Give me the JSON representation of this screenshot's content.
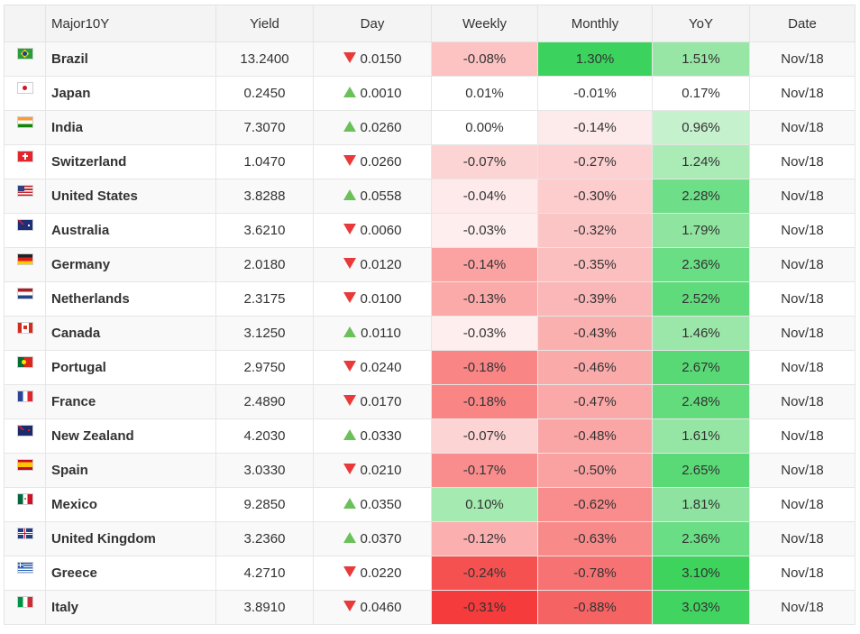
{
  "header": {
    "name": "Major10Y",
    "yield": "Yield",
    "day": "Day",
    "weekly": "Weekly",
    "monthly": "Monthly",
    "yoy": "YoY",
    "date": "Date"
  },
  "rows": [
    {
      "country": "Brazil",
      "flag_icon": "brazil-flag-icon",
      "yield": "13.2400",
      "day": "0.0150",
      "direction": "down",
      "weekly": "-0.08%",
      "monthly": "1.30%",
      "yoy": "1.51%",
      "date": "Nov/18",
      "weekly_color": "#fdc3c3",
      "monthly_color": "#3bd35d",
      "yoy_color": "#98e6a5"
    },
    {
      "country": "Japan",
      "flag_icon": "japan-flag-icon",
      "yield": "0.2450",
      "day": "0.0010",
      "direction": "up",
      "weekly": "0.01%",
      "monthly": "-0.01%",
      "yoy": "0.17%",
      "date": "Nov/18",
      "weekly_color": "#ffffff",
      "monthly_color": "#ffffff",
      "yoy_color": "#ffffff"
    },
    {
      "country": "India",
      "flag_icon": "india-flag-icon",
      "yield": "7.3070",
      "day": "0.0260",
      "direction": "up",
      "weekly": "0.00%",
      "monthly": "-0.14%",
      "yoy": "0.96%",
      "date": "Nov/18",
      "weekly_color": "#ffffff",
      "monthly_color": "#fdeaea",
      "yoy_color": "#c5f1cc"
    },
    {
      "country": "Switzerland",
      "flag_icon": "switzerland-flag-icon",
      "yield": "1.0470",
      "day": "0.0260",
      "direction": "down",
      "weekly": "-0.07%",
      "monthly": "-0.27%",
      "yoy": "1.24%",
      "date": "Nov/18",
      "weekly_color": "#fdd4d4",
      "monthly_color": "#fdd1d1",
      "yoy_color": "#aaebb6"
    },
    {
      "country": "United States",
      "flag_icon": "united-states-flag-icon",
      "yield": "3.8288",
      "day": "0.0558",
      "direction": "up",
      "weekly": "-0.04%",
      "monthly": "-0.30%",
      "yoy": "2.28%",
      "date": "Nov/18",
      "weekly_color": "#feeaea",
      "monthly_color": "#fdcccc",
      "yoy_color": "#6fde88"
    },
    {
      "country": "Australia",
      "flag_icon": "australia-flag-icon",
      "yield": "3.6210",
      "day": "0.0060",
      "direction": "down",
      "weekly": "-0.03%",
      "monthly": "-0.32%",
      "yoy": "1.79%",
      "date": "Nov/18",
      "weekly_color": "#feeeee",
      "monthly_color": "#fcc5c5",
      "yoy_color": "#8fe4a0"
    },
    {
      "country": "Germany",
      "flag_icon": "germany-flag-icon",
      "yield": "2.0180",
      "day": "0.0120",
      "direction": "down",
      "weekly": "-0.14%",
      "monthly": "-0.35%",
      "yoy": "2.36%",
      "date": "Nov/18",
      "weekly_color": "#fba3a3",
      "monthly_color": "#fcbfbf",
      "yoy_color": "#6ade84"
    },
    {
      "country": "Netherlands",
      "flag_icon": "netherlands-flag-icon",
      "yield": "2.3175",
      "day": "0.0100",
      "direction": "down",
      "weekly": "-0.13%",
      "monthly": "-0.39%",
      "yoy": "2.52%",
      "date": "Nov/18",
      "weekly_color": "#fba9a9",
      "monthly_color": "#fbb7b7",
      "yoy_color": "#60db7b"
    },
    {
      "country": "Canada",
      "flag_icon": "canada-flag-icon",
      "yield": "3.1250",
      "day": "0.0110",
      "direction": "up",
      "weekly": "-0.03%",
      "monthly": "-0.43%",
      "yoy": "1.46%",
      "date": "Nov/18",
      "weekly_color": "#feeeee",
      "monthly_color": "#fbb0b0",
      "yoy_color": "#9be7a9"
    },
    {
      "country": "Portugal",
      "flag_icon": "portugal-flag-icon",
      "yield": "2.9750",
      "day": "0.0240",
      "direction": "down",
      "weekly": "-0.18%",
      "monthly": "-0.46%",
      "yoy": "2.67%",
      "date": "Nov/18",
      "weekly_color": "#f98585",
      "monthly_color": "#fbaaaa",
      "yoy_color": "#59d975"
    },
    {
      "country": "France",
      "flag_icon": "france-flag-icon",
      "yield": "2.4890",
      "day": "0.0170",
      "direction": "down",
      "weekly": "-0.18%",
      "monthly": "-0.47%",
      "yoy": "2.48%",
      "date": "Nov/18",
      "weekly_color": "#f98585",
      "monthly_color": "#fba8a8",
      "yoy_color": "#63dc7d"
    },
    {
      "country": "New Zealand",
      "flag_icon": "new-zealand-flag-icon",
      "yield": "4.2030",
      "day": "0.0330",
      "direction": "up",
      "weekly": "-0.07%",
      "monthly": "-0.48%",
      "yoy": "1.61%",
      "date": "Nov/18",
      "weekly_color": "#fdd4d4",
      "monthly_color": "#fba6a6",
      "yoy_color": "#95e5a4"
    },
    {
      "country": "Spain",
      "flag_icon": "spain-flag-icon",
      "yield": "3.0330",
      "day": "0.0210",
      "direction": "down",
      "weekly": "-0.17%",
      "monthly": "-0.50%",
      "yoy": "2.65%",
      "date": "Nov/18",
      "weekly_color": "#f98d8d",
      "monthly_color": "#faa2a2",
      "yoy_color": "#5ada76"
    },
    {
      "country": "Mexico",
      "flag_icon": "mexico-flag-icon",
      "yield": "9.2850",
      "day": "0.0350",
      "direction": "up",
      "weekly": "0.10%",
      "monthly": "-0.62%",
      "yoy": "1.81%",
      "date": "Nov/18",
      "weekly_color": "#a5eab1",
      "monthly_color": "#f98c8c",
      "yoy_color": "#8de39f"
    },
    {
      "country": "United Kingdom",
      "flag_icon": "united-kingdom-flag-icon",
      "yield": "3.2360",
      "day": "0.0370",
      "direction": "up",
      "weekly": "-0.12%",
      "monthly": "-0.63%",
      "yoy": "2.36%",
      "date": "Nov/18",
      "weekly_color": "#fbafaf",
      "monthly_color": "#f98a8a",
      "yoy_color": "#6ade84"
    },
    {
      "country": "Greece",
      "flag_icon": "greece-flag-icon",
      "yield": "4.2710",
      "day": "0.0220",
      "direction": "down",
      "weekly": "-0.24%",
      "monthly": "-0.78%",
      "yoy": "3.10%",
      "date": "Nov/18",
      "weekly_color": "#f65151",
      "monthly_color": "#f77373",
      "yoy_color": "#3dd35d"
    },
    {
      "country": "Italy",
      "flag_icon": "italy-flag-icon",
      "yield": "3.8910",
      "day": "0.0460",
      "direction": "down",
      "weekly": "-0.31%",
      "monthly": "-0.88%",
      "yoy": "3.03%",
      "date": "Nov/18",
      "weekly_color": "#f53b3b",
      "monthly_color": "#f66363",
      "yoy_color": "#41d460"
    }
  ]
}
